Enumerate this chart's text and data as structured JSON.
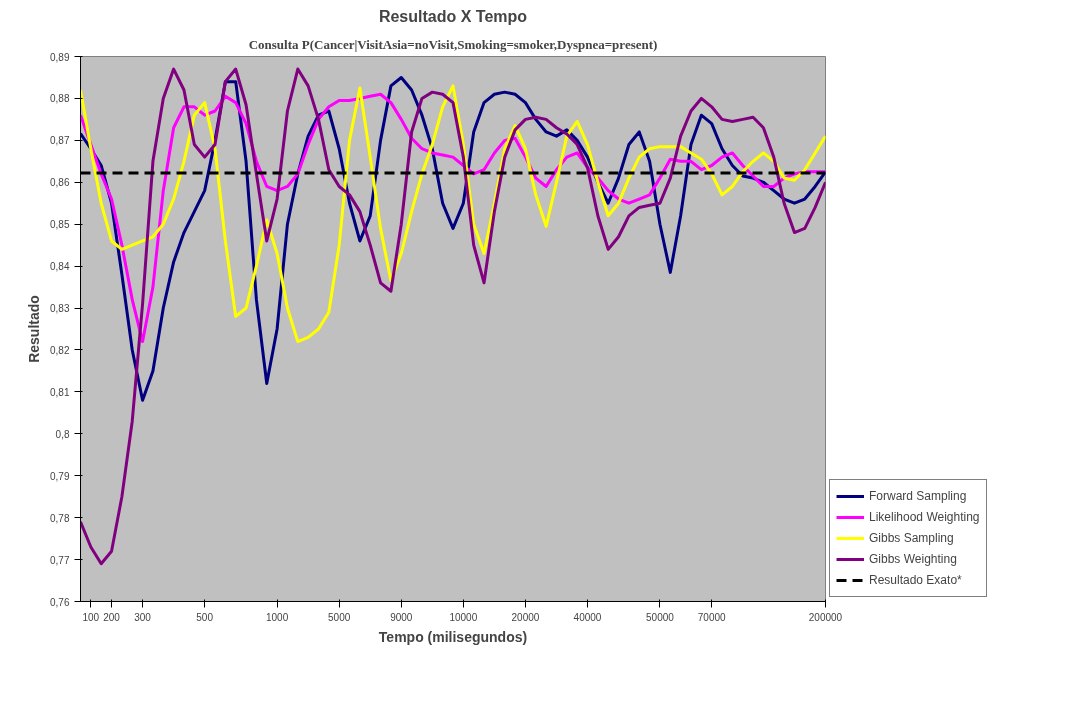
{
  "chart_data": {
    "type": "line",
    "title": "Resultado X Tempo",
    "subtitle": "Consulta P(Cancer|VisitAsia=noVisit,Smoking=smoker,Dyspnea=present)",
    "xlabel": "Tempo (milisegundos)",
    "ylabel": "Resultado",
    "categories": [
      null,
      "100",
      null,
      "200",
      null,
      null,
      "300",
      null,
      null,
      null,
      null,
      null,
      "500",
      null,
      null,
      null,
      null,
      null,
      null,
      "1000",
      null,
      null,
      null,
      null,
      null,
      "5000",
      null,
      null,
      null,
      null,
      null,
      "9000",
      null,
      null,
      null,
      null,
      null,
      "10000",
      null,
      null,
      null,
      null,
      null,
      "20000",
      null,
      null,
      null,
      null,
      null,
      "40000",
      null,
      null,
      null,
      null,
      null,
      null,
      "50000",
      null,
      null,
      null,
      null,
      "70000",
      null,
      null,
      null,
      null,
      null,
      null,
      null,
      null,
      null,
      null,
      "200000"
    ],
    "series": [
      {
        "name": "Forward Sampling",
        "color": "#000080",
        "values": [
          0.8716,
          0.868,
          0.864,
          0.855,
          0.838,
          0.82,
          0.808,
          0.815,
          0.83,
          0.841,
          0.848,
          0.853,
          0.858,
          0.87,
          0.884,
          0.884,
          0.865,
          0.832,
          0.812,
          0.825,
          0.85,
          0.862,
          0.871,
          0.876,
          0.877,
          0.868,
          0.855,
          0.846,
          0.852,
          0.87,
          0.883,
          0.885,
          0.882,
          0.876,
          0.868,
          0.855,
          0.849,
          0.855,
          0.872,
          0.879,
          0.881,
          0.8815,
          0.881,
          0.879,
          0.875,
          0.872,
          0.871,
          0.8725,
          0.87,
          0.866,
          0.86,
          0.855,
          0.861,
          0.869,
          0.872,
          0.865,
          0.85,
          0.8385,
          0.852,
          0.869,
          0.876,
          0.874,
          0.868,
          0.864,
          0.8615,
          0.861,
          0.86,
          0.858,
          0.856,
          0.855,
          0.856,
          0.859,
          0.8625
        ]
      },
      {
        "name": "Likelihood Weighting",
        "color": "#ff00ff",
        "values": [
          0.876,
          0.869,
          0.862,
          0.856,
          0.845,
          0.832,
          0.822,
          0.835,
          0.858,
          0.873,
          0.878,
          0.878,
          0.876,
          0.877,
          0.8805,
          0.879,
          0.874,
          0.865,
          0.859,
          0.858,
          0.859,
          0.862,
          0.869,
          0.875,
          0.878,
          0.8795,
          0.8795,
          0.88,
          0.8805,
          0.881,
          0.879,
          0.875,
          0.8705,
          0.868,
          0.867,
          0.8665,
          0.866,
          0.864,
          0.862,
          0.863,
          0.867,
          0.87,
          0.8705,
          0.866,
          0.861,
          0.859,
          0.863,
          0.866,
          0.867,
          0.8635,
          0.861,
          0.858,
          0.856,
          0.855,
          0.856,
          0.857,
          0.861,
          0.8655,
          0.865,
          0.865,
          0.863,
          0.864,
          0.866,
          0.867,
          0.864,
          0.8615,
          0.859,
          0.859,
          0.861,
          0.862,
          0.8625,
          0.8625,
          0.8625
        ]
      },
      {
        "name": "Gibbs Sampling",
        "color": "#ffff00",
        "values": [
          0.882,
          0.868,
          0.855,
          0.846,
          0.844,
          0.845,
          0.846,
          0.847,
          0.85,
          0.856,
          0.865,
          0.876,
          0.879,
          0.868,
          0.846,
          0.828,
          0.83,
          0.84,
          0.851,
          0.843,
          0.83,
          0.822,
          0.823,
          0.825,
          0.829,
          0.845,
          0.87,
          0.8825,
          0.866,
          0.849,
          0.8365,
          0.843,
          0.853,
          0.862,
          0.869,
          0.878,
          0.883,
          0.869,
          0.85,
          0.843,
          0.855,
          0.868,
          0.8735,
          0.868,
          0.857,
          0.8495,
          0.86,
          0.871,
          0.8745,
          0.869,
          0.86,
          0.852,
          0.855,
          0.861,
          0.866,
          0.868,
          0.8685,
          0.8685,
          0.8685,
          0.867,
          0.8655,
          0.862,
          0.857,
          0.859,
          0.8625,
          0.865,
          0.867,
          0.865,
          0.861,
          0.8605,
          0.863,
          0.867,
          0.871
        ]
      },
      {
        "name": "Gibbs Weighting",
        "color": "#800080",
        "values": [
          0.779,
          0.773,
          0.769,
          0.772,
          0.785,
          0.803,
          0.831,
          0.865,
          0.88,
          0.887,
          0.882,
          0.869,
          0.866,
          0.869,
          0.884,
          0.887,
          0.8785,
          0.862,
          0.846,
          0.856,
          0.877,
          0.887,
          0.883,
          0.875,
          0.863,
          0.859,
          0.857,
          0.853,
          0.845,
          0.836,
          0.834,
          0.85,
          0.872,
          0.88,
          0.8815,
          0.881,
          0.879,
          0.866,
          0.845,
          0.836,
          0.853,
          0.866,
          0.8725,
          0.875,
          0.8755,
          0.875,
          0.873,
          0.8715,
          0.869,
          0.8635,
          0.852,
          0.844,
          0.847,
          0.852,
          0.854,
          0.8545,
          0.855,
          0.861,
          0.871,
          0.877,
          0.88,
          0.878,
          0.875,
          0.8745,
          0.875,
          0.8755,
          0.873,
          0.866,
          0.855,
          0.848,
          0.849,
          0.854,
          0.86
        ]
      },
      {
        "name": "Resultado Exato*",
        "color": "#000000",
        "line_style": "dashed",
        "values": [
          0.8622,
          0.8622,
          0.8622,
          0.8622,
          0.8622,
          0.8622,
          0.8622,
          0.8622,
          0.8622,
          0.8622,
          0.8622,
          0.8622,
          0.8622,
          0.8622,
          0.8622,
          0.8622,
          0.8622,
          0.8622,
          0.8622,
          0.8622,
          0.8622,
          0.8622,
          0.8622,
          0.8622,
          0.8622,
          0.8622,
          0.8622,
          0.8622,
          0.8622,
          0.8622,
          0.8622,
          0.8622,
          0.8622,
          0.8622,
          0.8622,
          0.8622,
          0.8622,
          0.8622,
          0.8622,
          0.8622,
          0.8622,
          0.8622,
          0.8622,
          0.8622,
          0.8622,
          0.8622,
          0.8622,
          0.8622,
          0.8622,
          0.8622,
          0.8622,
          0.8622,
          0.8622,
          0.8622,
          0.8622,
          0.8622,
          0.8622,
          0.8622,
          0.8622,
          0.8622,
          0.8622,
          0.8622,
          0.8622,
          0.8622,
          0.8622,
          0.8622,
          0.8622,
          0.8622,
          0.8622,
          0.8622,
          0.8622,
          0.8622,
          0.8622
        ]
      }
    ],
    "ylim": [
      0.76,
      0.89
    ],
    "yticks": [
      {
        "value": 0.76,
        "label": "0,76"
      },
      {
        "value": 0.77,
        "label": "0,77"
      },
      {
        "value": 0.78,
        "label": "0,78"
      },
      {
        "value": 0.79,
        "label": "0,79"
      },
      {
        "value": 0.8,
        "label": "0,8"
      },
      {
        "value": 0.81,
        "label": "0,81"
      },
      {
        "value": 0.82,
        "label": "0,82"
      },
      {
        "value": 0.83,
        "label": "0,83"
      },
      {
        "value": 0.84,
        "label": "0,84"
      },
      {
        "value": 0.85,
        "label": "0,85"
      },
      {
        "value": 0.86,
        "label": "0,86"
      },
      {
        "value": 0.87,
        "label": "0,87"
      },
      {
        "value": 0.88,
        "label": "0,88"
      },
      {
        "value": 0.89,
        "label": "0,89"
      }
    ],
    "grid": false,
    "legend": "right",
    "marker": "none",
    "line_style": "solid"
  }
}
